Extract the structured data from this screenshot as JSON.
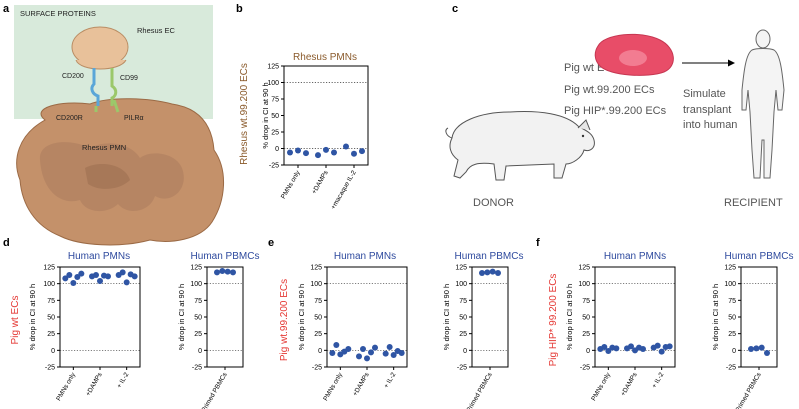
{
  "panel_labels": [
    "a",
    "b",
    "c",
    "d",
    "e",
    "f"
  ],
  "panel_a": {
    "header": "SURFACE PROTEINS",
    "ec_label": "Rhesus EC",
    "pmn_label": "Rhesus PMN",
    "proteins": [
      "CD200",
      "CD99",
      "CD200R",
      "PILRα"
    ],
    "colors": {
      "bg": "#d8eadb",
      "ec": "#e8c19a",
      "pmn": "#c4916a",
      "cd200": "#5aa6d8",
      "cd99": "#9bc86a"
    }
  },
  "panel_c": {
    "cell_lines": [
      "Pig wt ECs",
      "Pig wt.99.200 ECs",
      "Pig HIP*.99.200 ECs"
    ],
    "action": "Simulate transplant into human",
    "action_lines": [
      "Simulate",
      "transplant",
      "into human"
    ],
    "donor": "DONOR",
    "recipient": "RECIPIENT"
  },
  "chart_data": [
    {
      "id": "b",
      "type": "scatter",
      "title": "Rhesus PMNs",
      "group_label": "Rhesus wt.99.200 ECs",
      "group_color": "#8a5a2b",
      "ylabel": "% drop in CI at 90 h",
      "ylim": [
        -25,
        125
      ],
      "yticks": [
        -25,
        0,
        25,
        50,
        75,
        100,
        125
      ],
      "categories": [
        "PMNs only",
        "+DAMPs",
        "+macaque IL-2"
      ],
      "values": [
        [
          -6,
          -3,
          -7
        ],
        [
          -10,
          -2,
          -6
        ],
        [
          3,
          -8,
          -4
        ]
      ]
    },
    {
      "id": "d1",
      "type": "scatter",
      "title": "Human PMNs",
      "group_label": "Pig wt ECs",
      "group_color": "#e53935",
      "ylabel": "% drop in CI at 90 h",
      "ylim": [
        -25,
        125
      ],
      "yticks": [
        -25,
        0,
        25,
        50,
        75,
        100,
        125
      ],
      "categories": [
        "PMNs only",
        "+DAMPs",
        "+ IL-2"
      ],
      "values": [
        [
          108,
          113,
          101,
          110,
          115
        ],
        [
          111,
          113,
          104,
          112,
          111
        ],
        [
          113,
          117,
          102,
          114,
          111
        ]
      ]
    },
    {
      "id": "d2",
      "type": "scatter",
      "title": "Human PBMCs",
      "ylabel": "% drop in CI at 90 h",
      "ylim": [
        -25,
        125
      ],
      "yticks": [
        -25,
        0,
        25,
        50,
        75,
        100,
        125
      ],
      "categories": [
        "Primed PBMCs"
      ],
      "values": [
        [
          117,
          119,
          118,
          117
        ]
      ]
    },
    {
      "id": "e1",
      "type": "scatter",
      "title": "Human PMNs",
      "group_label": "Pig wt.99.200 ECs",
      "group_color": "#e53935",
      "ylabel": "% drop in CI at 90 h",
      "ylim": [
        -25,
        125
      ],
      "yticks": [
        -25,
        0,
        25,
        50,
        75,
        100,
        125
      ],
      "categories": [
        "PMNs only",
        "+DAMPs",
        "+ IL-2"
      ],
      "values": [
        [
          -4,
          8,
          -6,
          -2,
          2
        ],
        [
          -9,
          2,
          -12,
          -3,
          4
        ],
        [
          -5,
          5,
          -7,
          -1,
          -4
        ]
      ]
    },
    {
      "id": "e2",
      "type": "scatter",
      "title": "Human PBMCs",
      "ylabel": "% drop in CI at 90 h",
      "ylim": [
        -25,
        125
      ],
      "yticks": [
        -25,
        0,
        25,
        50,
        75,
        100,
        125
      ],
      "categories": [
        "Primed PBMCs"
      ],
      "values": [
        [
          116,
          117,
          118,
          116
        ]
      ]
    },
    {
      "id": "f1",
      "type": "scatter",
      "title": "Human PMNs",
      "group_label": "Pig HIP* 99.200 ECs",
      "group_color": "#e53935",
      "ylabel": "% drop in CI at 90 h",
      "ylim": [
        -25,
        125
      ],
      "yticks": [
        -25,
        0,
        25,
        50,
        75,
        100,
        125
      ],
      "categories": [
        "PMNs only",
        "+DAMPs",
        "+ IL-2"
      ],
      "values": [
        [
          2,
          5,
          -1,
          4,
          3
        ],
        [
          3,
          6,
          0,
          4,
          2
        ],
        [
          4,
          7,
          -2,
          5,
          6
        ]
      ]
    },
    {
      "id": "f2",
      "type": "scatter",
      "title": "Human PBMCs",
      "ylabel": "% drop in CI at 90 h",
      "ylim": [
        -25,
        125
      ],
      "yticks": [
        -25,
        0,
        25,
        50,
        75,
        100,
        125
      ],
      "categories": [
        "Primed PBMCs"
      ],
      "values": [
        [
          2,
          3,
          4,
          -4
        ]
      ]
    }
  ]
}
